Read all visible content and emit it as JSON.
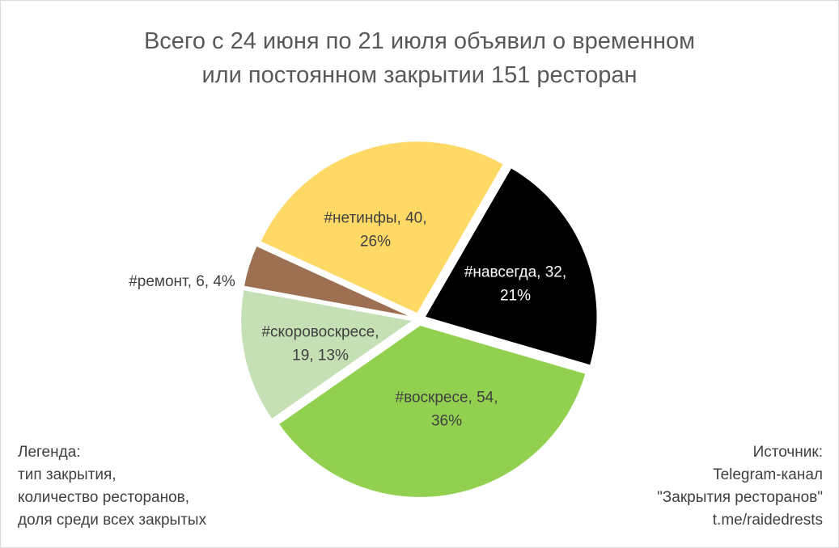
{
  "chart_data": {
    "type": "pie",
    "title_lines": [
      "Всего с 24 июня по 21 июля объявил о временном",
      "или постоянном закрытии 151 ресторан"
    ],
    "slices": [
      {
        "name": "#навсегда",
        "value": 32,
        "percent": "21%",
        "color": "#000000",
        "label_color": "#ffffff",
        "label_lines": [
          "#навсегда, 32,",
          "21%"
        ]
      },
      {
        "name": "#воскресе",
        "value": 54,
        "percent": "36%",
        "color": "#92d050",
        "label_color": "#404040",
        "label_lines": [
          "#воскресе, 54,",
          "36%"
        ]
      },
      {
        "name": "#скоровоскресе",
        "value": 19,
        "percent": "13%",
        "color": "#c5e0b4",
        "label_color": "#404040",
        "label_lines": [
          "#скоровоскресе,",
          "19, 13%"
        ]
      },
      {
        "name": "#ремонт",
        "value": 6,
        "percent": "4%",
        "color": "#9c7050",
        "label_color": "#404040",
        "label_lines": [
          "#ремонт, 6, 4%"
        ]
      },
      {
        "name": "#нетинфы",
        "value": 40,
        "percent": "26%",
        "color": "#ffd966",
        "label_color": "#404040",
        "label_lines": [
          "#нетинфы, 40,",
          "26%"
        ]
      }
    ]
  },
  "legend_note": {
    "lines": [
      "Легенда:",
      "тип закрытия,",
      "количество ресторанов,",
      "доля среди всех закрытых"
    ]
  },
  "source_note": {
    "lines": [
      "Источник:",
      "Telegram-канал",
      "\"Закрытия ресторанов\"",
      "t.me/raidedrests"
    ]
  }
}
